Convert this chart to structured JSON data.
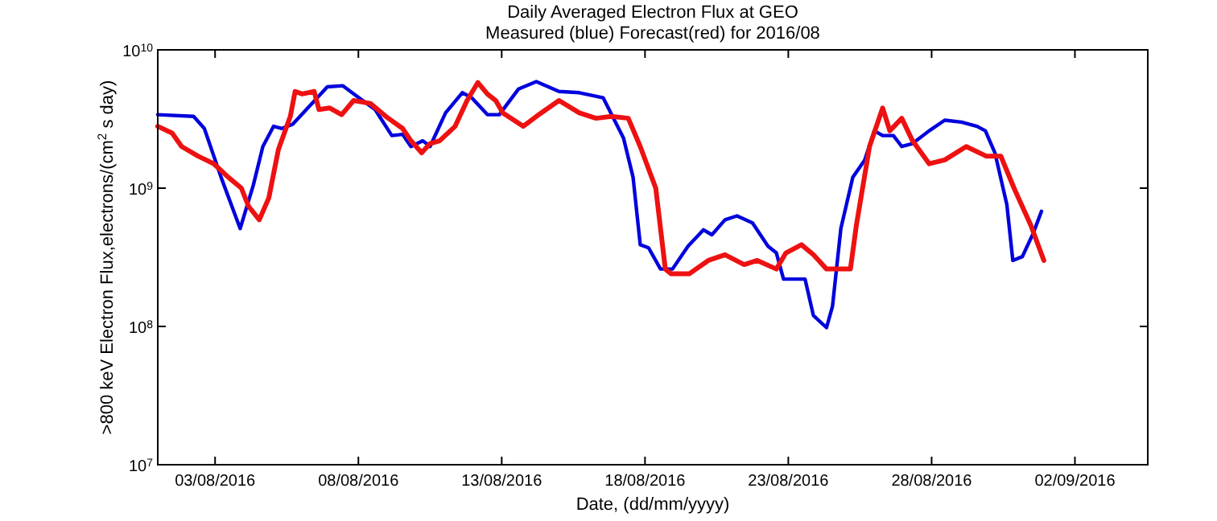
{
  "chart_data": {
    "type": "line",
    "title": "Daily Averaged Electron Flux at GEO",
    "subtitle": "Measured (blue) Forecast(red) for 2016/08",
    "xlabel": "Date, (dd/mm/yyyy)",
    "ylabel": ">800 keV Electron Flux,electrons/(cm$^{2}$ s day)",
    "log": "y",
    "grid": false,
    "xlim": [
      "2016-08-01T00:00",
      "2016-09-04T13:00"
    ],
    "xticks": [
      {
        "value": "2016-08-03",
        "label": "03/08/2016"
      },
      {
        "value": "2016-08-08",
        "label": "08/08/2016"
      },
      {
        "value": "2016-08-13",
        "label": "13/08/2016"
      },
      {
        "value": "2016-08-18",
        "label": "18/08/2016"
      },
      {
        "value": "2016-08-23",
        "label": "23/08/2016"
      },
      {
        "value": "2016-08-28",
        "label": "28/08/2016"
      },
      {
        "value": "2016-09-02",
        "label": "02/09/2016"
      }
    ],
    "ylim": [
      10000000,
      10000000000
    ],
    "yticks": [
      {
        "value": 10000000,
        "label": "10$^{7}$"
      },
      {
        "value": 100000000,
        "label": "10$^{8}$"
      },
      {
        "value": 1000000000,
        "label": "10$^{9}$"
      },
      {
        "value": 10000000000,
        "label": "10$^{10}$"
      }
    ],
    "series": [
      {
        "color": "#0000dd",
        "x": [
          "2016-08-01T00:00",
          "2016-08-02T06:00",
          "2016-08-02T15:00",
          "2016-08-03T05:00",
          "2016-08-03T21:00",
          "2016-08-04T08:00",
          "2016-08-04T16:00",
          "2016-08-05T01:00",
          "2016-08-05T08:00",
          "2016-08-05T17:00",
          "2016-08-06T08:00",
          "2016-08-06T22:00",
          "2016-08-07T11:00",
          "2016-08-07T23:00",
          "2016-08-08T14:00",
          "2016-08-09T04:00",
          "2016-08-09T13:00",
          "2016-08-09T20:00",
          "2016-08-10T06:00",
          "2016-08-10T12:00",
          "2016-08-11T01:00",
          "2016-08-11T15:00",
          "2016-08-11T23:00",
          "2016-08-12T12:00",
          "2016-08-12T22:00",
          "2016-08-13T14:00",
          "2016-08-14T05:00",
          "2016-08-15T00:00",
          "2016-08-15T17:00",
          "2016-08-16T13:00",
          "2016-08-17T06:00",
          "2016-08-17T14:00",
          "2016-08-17T20:00",
          "2016-08-18T03:00",
          "2016-08-18T13:00",
          "2016-08-18T23:00",
          "2016-08-19T12:00",
          "2016-08-20T01:00",
          "2016-08-20T08:00",
          "2016-08-20T19:00",
          "2016-08-21T05:00",
          "2016-08-21T18:00",
          "2016-08-22T07:00",
          "2016-08-22T14:00",
          "2016-08-22T20:00",
          "2016-08-23T14:00",
          "2016-08-23T21:00",
          "2016-08-24T08:00",
          "2016-08-24T13:00",
          "2016-08-24T20:00",
          "2016-08-25T06:00",
          "2016-08-25T16:00",
          "2016-08-26T00:00",
          "2016-08-26T07:00",
          "2016-08-26T16:00",
          "2016-08-26T23:00",
          "2016-08-27T08:00",
          "2016-08-27T22:00",
          "2016-08-28T11:00",
          "2016-08-29T01:00",
          "2016-08-29T14:00",
          "2016-08-29T21:00",
          "2016-08-30T05:00",
          "2016-08-30T15:00",
          "2016-08-30T20:00",
          "2016-08-31T04:00",
          "2016-08-31T13:00",
          "2016-08-31T20:00"
        ],
        "values": [
          3400000000.0,
          3300000000.0,
          2700000000.0,
          1200000000.0,
          510000000.0,
          1050000000.0,
          2000000000.0,
          2800000000.0,
          2700000000.0,
          2900000000.0,
          4000000000.0,
          5400000000.0,
          5500000000.0,
          4600000000.0,
          3700000000.0,
          2400000000.0,
          2450000000.0,
          2000000000.0,
          2200000000.0,
          2000000000.0,
          3500000000.0,
          4900000000.0,
          4500000000.0,
          3400000000.0,
          3400000000.0,
          5200000000.0,
          5900000000.0,
          5000000000.0,
          4900000000.0,
          4500000000.0,
          2300000000.0,
          1200000000.0,
          390000000.0,
          370000000.0,
          260000000.0,
          260000000.0,
          380000000.0,
          500000000.0,
          460000000.0,
          590000000.0,
          630000000.0,
          560000000.0,
          380000000.0,
          340000000.0,
          220000000.0,
          220000000.0,
          120000000.0,
          98000000.0,
          140000000.0,
          510000000.0,
          1200000000.0,
          1600000000.0,
          2600000000.0,
          2400000000.0,
          2400000000.0,
          2000000000.0,
          2100000000.0,
          2600000000.0,
          3100000000.0,
          3000000000.0,
          2800000000.0,
          2600000000.0,
          1800000000.0,
          760000000.0,
          300000000.0,
          320000000.0,
          470000000.0,
          680000000.0
        ]
      },
      {
        "color": "#ee1111",
        "x": [
          "2016-08-01T00:00",
          "2016-08-01T12:00",
          "2016-08-01T20:00",
          "2016-08-02T10:00",
          "2016-08-02T23:00",
          "2016-08-03T11:00",
          "2016-08-03T22:00",
          "2016-08-04T04:00",
          "2016-08-04T13:00",
          "2016-08-04T21:00",
          "2016-08-05T05:00",
          "2016-08-05T15:00",
          "2016-08-05T19:00",
          "2016-08-06T01:00",
          "2016-08-06T11:00",
          "2016-08-06T15:00",
          "2016-08-07T00:00",
          "2016-08-07T10:00",
          "2016-08-07T20:00",
          "2016-08-08T10:00",
          "2016-08-08T23:00",
          "2016-08-09T13:00",
          "2016-08-09T20:00",
          "2016-08-10T05:00",
          "2016-08-10T12:00",
          "2016-08-10T20:00",
          "2016-08-11T09:00",
          "2016-08-11T19:00",
          "2016-08-12T04:00",
          "2016-08-12T12:00",
          "2016-08-12T19:00",
          "2016-08-13T01:00",
          "2016-08-13T18:00",
          "2016-08-14T05:00",
          "2016-08-15T00:00",
          "2016-08-15T17:00",
          "2016-08-16T07:00",
          "2016-08-16T20:00",
          "2016-08-17T10:00",
          "2016-08-17T20:00",
          "2016-08-18T09:00",
          "2016-08-18T17:00",
          "2016-08-18T22:00",
          "2016-08-19T13:00",
          "2016-08-20T05:00",
          "2016-08-20T19:00",
          "2016-08-21T11:00",
          "2016-08-21T22:00",
          "2016-08-22T14:00",
          "2016-08-22T22:00",
          "2016-08-23T11:00",
          "2016-08-23T21:00",
          "2016-08-24T08:00",
          "2016-08-25T04:00",
          "2016-08-25T09:00",
          "2016-08-25T20:00",
          "2016-08-26T07:00",
          "2016-08-26T13:00",
          "2016-08-26T23:00",
          "2016-08-27T08:00",
          "2016-08-27T22:00",
          "2016-08-28T11:00",
          "2016-08-29T05:00",
          "2016-08-29T22:00",
          "2016-08-30T10:00",
          "2016-08-30T21:00",
          "2016-08-31T11:00",
          "2016-08-31T22:00"
        ],
        "values": [
          2800000000.0,
          2500000000.0,
          2000000000.0,
          1700000000.0,
          1500000000.0,
          1200000000.0,
          1000000000.0,
          740000000.0,
          590000000.0,
          850000000.0,
          1900000000.0,
          3300000000.0,
          5000000000.0,
          4800000000.0,
          5000000000.0,
          3700000000.0,
          3800000000.0,
          3400000000.0,
          4300000000.0,
          4100000000.0,
          3300000000.0,
          2700000000.0,
          2200000000.0,
          1800000000.0,
          2100000000.0,
          2200000000.0,
          2800000000.0,
          4300000000.0,
          5800000000.0,
          4800000000.0,
          4300000000.0,
          3500000000.0,
          2800000000.0,
          3300000000.0,
          4300000000.0,
          3500000000.0,
          3200000000.0,
          3300000000.0,
          3200000000.0,
          2000000000.0,
          1000000000.0,
          260000000.0,
          240000000.0,
          240000000.0,
          300000000.0,
          330000000.0,
          280000000.0,
          300000000.0,
          260000000.0,
          340000000.0,
          390000000.0,
          330000000.0,
          260000000.0,
          260000000.0,
          540000000.0,
          2000000000.0,
          3800000000.0,
          2600000000.0,
          3200000000.0,
          2200000000.0,
          1500000000.0,
          1600000000.0,
          2000000000.0,
          1700000000.0,
          1700000000.0,
          1000000000.0,
          540000000.0,
          300000000.0
        ]
      }
    ]
  }
}
